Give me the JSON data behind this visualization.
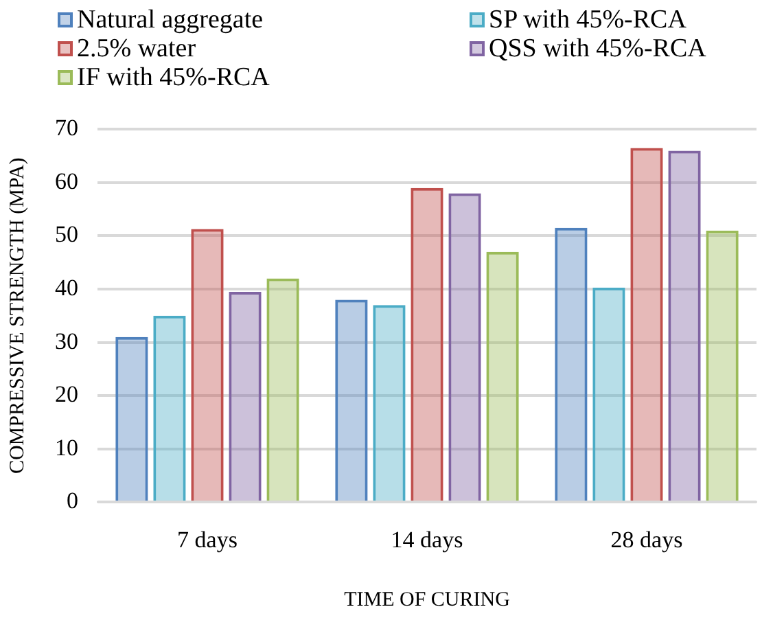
{
  "chart_data": {
    "type": "bar",
    "xlabel": "TIME OF CURING",
    "ylabel": "COMPRESSIVE STRENGTH (MPA)",
    "categories": [
      "7 days",
      "14 days",
      "28 days"
    ],
    "series": [
      {
        "name": "Natural aggregate",
        "color": "#4f81bd",
        "values": [
          31,
          38,
          51.5
        ]
      },
      {
        "name": "SP with 45%-RCA",
        "color": "#4bacc6",
        "values": [
          35,
          37,
          40.3
        ]
      },
      {
        "name": "2.5% water",
        "color": "#c0504d",
        "values": [
          51.3,
          59,
          66.5
        ]
      },
      {
        "name": "QSS with 45%-RCA",
        "color": "#8064a2",
        "values": [
          39.5,
          58,
          66
        ]
      },
      {
        "name": "IF with 45%-RCA",
        "color": "#9bbb59",
        "values": [
          42,
          47,
          51
        ]
      }
    ],
    "ylim": [
      0,
      70
    ],
    "yticks": [
      0,
      10,
      20,
      30,
      40,
      50,
      60,
      70
    ],
    "grid": "y",
    "legend": "top"
  }
}
